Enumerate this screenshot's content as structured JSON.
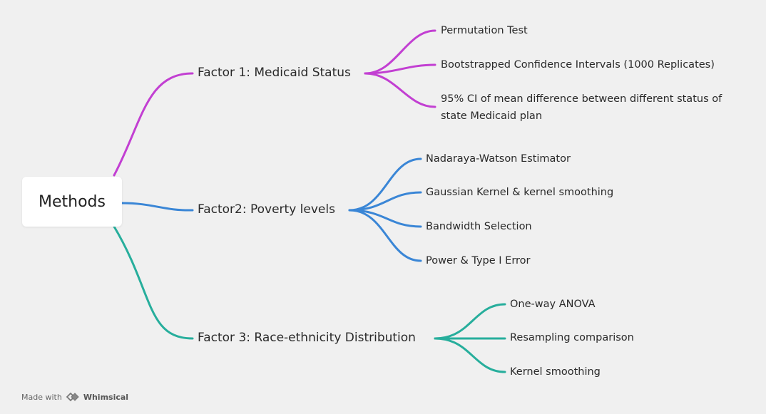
{
  "root": {
    "label": "Methods"
  },
  "branches": [
    {
      "label": "Factor 1: Medicaid Status",
      "color": "#c23fd2",
      "leaves": [
        "Permutation Test",
        "Bootstrapped Confidence Intervals (1000 Replicates)",
        "95% CI of mean difference between different status of state Medicaid plan"
      ]
    },
    {
      "label": "Factor2: Poverty levels",
      "color": "#3a86d6",
      "leaves": [
        "Nadaraya-Watson Estimator",
        "Gaussian Kernel & kernel smoothing",
        "Bandwidth Selection",
        "Power & Type I Error"
      ]
    },
    {
      "label": "Factor 3: Race-ethnicity Distribution",
      "color": "#27ae9c",
      "leaves": [
        "One-way ANOVA",
        "Resampling comparison",
        "Kernel smoothing"
      ]
    }
  ],
  "footer": {
    "prefix": "Made with",
    "brand": "Whimsical",
    "logo_icon": "whimsical-logo-icon"
  }
}
